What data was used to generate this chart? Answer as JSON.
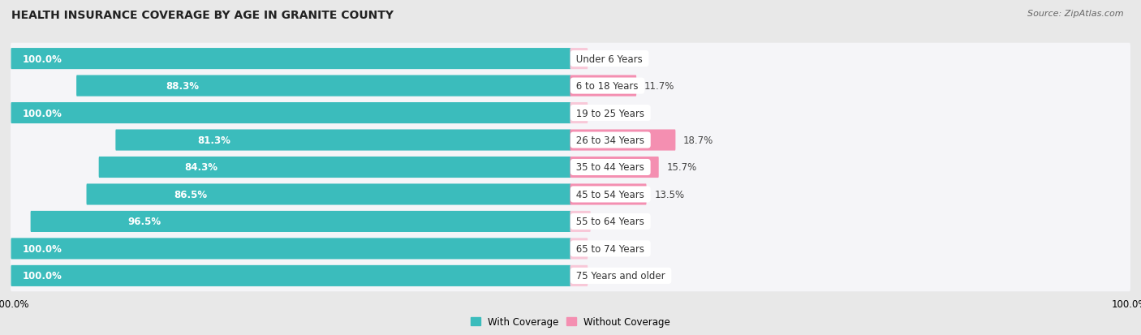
{
  "title": "HEALTH INSURANCE COVERAGE BY AGE IN GRANITE COUNTY",
  "source": "Source: ZipAtlas.com",
  "categories": [
    "Under 6 Years",
    "6 to 18 Years",
    "19 to 25 Years",
    "26 to 34 Years",
    "35 to 44 Years",
    "45 to 54 Years",
    "55 to 64 Years",
    "65 to 74 Years",
    "75 Years and older"
  ],
  "with_coverage": [
    100.0,
    88.3,
    100.0,
    81.3,
    84.3,
    86.5,
    96.5,
    100.0,
    100.0
  ],
  "without_coverage": [
    0.0,
    11.7,
    0.0,
    18.7,
    15.7,
    13.5,
    3.5,
    0.0,
    0.0
  ],
  "color_with": "#3BBCBC",
  "color_without": "#F48FB1",
  "color_without_light": "#F8C8D8",
  "bg_color": "#e8e8e8",
  "bar_bg_color": "#f5f5f8",
  "title_fontsize": 10,
  "label_fontsize": 8.5,
  "tick_fontsize": 8.5,
  "legend_fontsize": 8.5,
  "source_fontsize": 8
}
